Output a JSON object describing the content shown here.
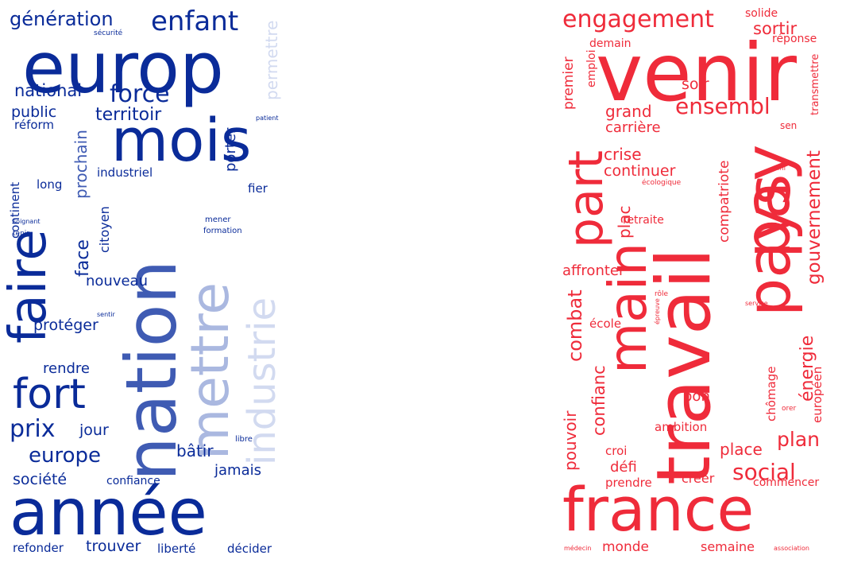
{
  "palette": {
    "blue": [
      "#0a2b99",
      "#3f5bb3",
      "#7d92cf",
      "#aab8e0",
      "#d2daf0"
    ],
    "red": [
      "#ef2b3a",
      "#f04150",
      "#f26671"
    ]
  },
  "clouds": [
    {
      "id": "blue",
      "words": [
        {
          "text": "génération",
          "c": 0
        },
        {
          "text": "enfant",
          "c": 0
        },
        {
          "text": "sécurité",
          "c": 0
        },
        {
          "text": "europ",
          "c": 0
        },
        {
          "text": "permettre",
          "c": 4
        },
        {
          "text": "mois",
          "c": 0
        },
        {
          "text": "force",
          "c": 0
        },
        {
          "text": "national",
          "c": 0
        },
        {
          "text": "public",
          "c": 0
        },
        {
          "text": "territoir",
          "c": 0
        },
        {
          "text": "réform",
          "c": 0
        },
        {
          "text": "patient",
          "c": 0
        },
        {
          "text": "porter",
          "c": 0
        },
        {
          "text": "prochain",
          "c": 1
        },
        {
          "text": "faire",
          "c": 0
        },
        {
          "text": "continent",
          "c": 0
        },
        {
          "text": "industriel",
          "c": 0
        },
        {
          "text": "long",
          "c": 0
        },
        {
          "text": "fier",
          "c": 0
        },
        {
          "text": "nation",
          "c": 1
        },
        {
          "text": "face",
          "c": 0
        },
        {
          "text": "citoyen",
          "c": 0
        },
        {
          "text": "soignant",
          "c": 0
        },
        {
          "text": "tenir",
          "c": 0
        },
        {
          "text": "mener",
          "c": 0
        },
        {
          "text": "formation",
          "c": 0
        },
        {
          "text": "mettre",
          "c": 3
        },
        {
          "text": "industrie",
          "c": 4
        },
        {
          "text": "nouveau",
          "c": 0
        },
        {
          "text": "sentir",
          "c": 0
        },
        {
          "text": "protéger",
          "c": 0
        },
        {
          "text": "rendre",
          "c": 0
        },
        {
          "text": "fort",
          "c": 0
        },
        {
          "text": "prix",
          "c": 0
        },
        {
          "text": "jour",
          "c": 0
        },
        {
          "text": "europe",
          "c": 0
        },
        {
          "text": "libre",
          "c": 0
        },
        {
          "text": "bâtir",
          "c": 0
        },
        {
          "text": "jamais",
          "c": 0
        },
        {
          "text": "société",
          "c": 0
        },
        {
          "text": "confiance",
          "c": 0
        },
        {
          "text": "année",
          "c": 0
        },
        {
          "text": "refonder",
          "c": 0
        },
        {
          "text": "trouver",
          "c": 0
        },
        {
          "text": "liberté",
          "c": 0
        },
        {
          "text": "décider",
          "c": 0
        }
      ]
    },
    {
      "id": "red",
      "words": [
        {
          "text": "engagement",
          "c": 0
        },
        {
          "text": "solide",
          "c": 0
        },
        {
          "text": "sortir",
          "c": 0
        },
        {
          "text": "demain",
          "c": 0
        },
        {
          "text": "réponse",
          "c": 0
        },
        {
          "text": "venir",
          "c": 0
        },
        {
          "text": "emploi",
          "c": 0
        },
        {
          "text": "premier",
          "c": 0
        },
        {
          "text": "soir",
          "c": 0
        },
        {
          "text": "grand",
          "c": 0
        },
        {
          "text": "ensembl",
          "c": 0
        },
        {
          "text": "carrière",
          "c": 0
        },
        {
          "text": "sen",
          "c": 0
        },
        {
          "text": "crise",
          "c": 0
        },
        {
          "text": "continuer",
          "c": 0
        },
        {
          "text": "ami",
          "c": 0
        },
        {
          "text": "écologique",
          "c": 0
        },
        {
          "text": "transmettre",
          "c": 0
        },
        {
          "text": "part",
          "c": 0
        },
        {
          "text": "plac",
          "c": 0
        },
        {
          "text": "retraite",
          "c": 0
        },
        {
          "text": "compatriote",
          "c": 0
        },
        {
          "text": "gouvernement",
          "c": 0
        },
        {
          "text": "pays",
          "c": 0
        },
        {
          "text": "pay",
          "c": 0
        },
        {
          "text": "travail",
          "c": 0
        },
        {
          "text": "main",
          "c": 0
        },
        {
          "text": "affronter",
          "c": 0
        },
        {
          "text": "combat",
          "c": 0
        },
        {
          "text": "rôle",
          "c": 0
        },
        {
          "text": "service",
          "c": 0
        },
        {
          "text": "épreuve",
          "c": 0
        },
        {
          "text": "école",
          "c": 0
        },
        {
          "text": "énergie",
          "c": 0
        },
        {
          "text": "confianc",
          "c": 0
        },
        {
          "text": "bon",
          "c": 0
        },
        {
          "text": "chômage",
          "c": 0
        },
        {
          "text": "orer",
          "c": 0
        },
        {
          "text": "européen",
          "c": 0
        },
        {
          "text": "pouvoir",
          "c": 0
        },
        {
          "text": "ambition",
          "c": 0
        },
        {
          "text": "croi",
          "c": 0
        },
        {
          "text": "place",
          "c": 0
        },
        {
          "text": "plan",
          "c": 0
        },
        {
          "text": "social",
          "c": 0
        },
        {
          "text": "défi",
          "c": 0
        },
        {
          "text": "prendre",
          "c": 0
        },
        {
          "text": "créer",
          "c": 0
        },
        {
          "text": "commencer",
          "c": 0
        },
        {
          "text": "france",
          "c": 0
        },
        {
          "text": "monde",
          "c": 0
        },
        {
          "text": "semaine",
          "c": 0
        },
        {
          "text": "médecin",
          "c": 0
        },
        {
          "text": "association",
          "c": 0
        }
      ]
    }
  ]
}
